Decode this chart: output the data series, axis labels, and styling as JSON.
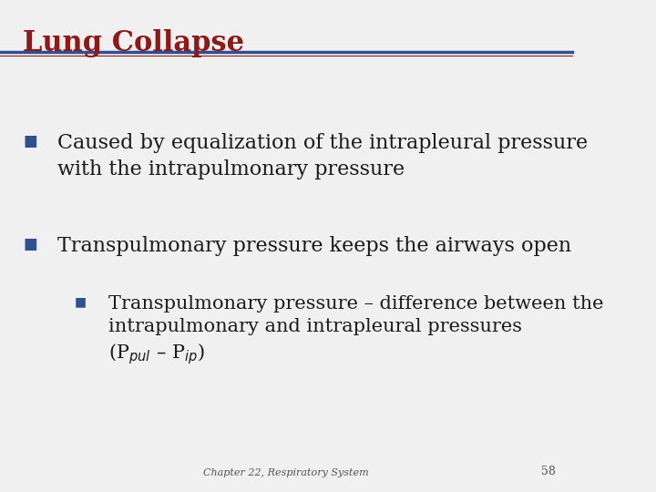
{
  "title": "Lung Collapse",
  "title_color": "#8B1A1A",
  "title_fontsize": 22,
  "title_fontstyle": "bold",
  "line_color": "#2F4F8F",
  "line2_color": "#8B1A1A",
  "background_color": "#F0F0F0",
  "bullet_color": "#2F4F8F",
  "text_color": "#1a1a1a",
  "footer_text": "Chapter 22, Respiratory System",
  "footer_page": "58",
  "bullets": [
    {
      "level": 1,
      "text": "Caused by equalization of the intrapleural pressure\nwith the intrapulmonary pressure",
      "fontsize": 16
    },
    {
      "level": 1,
      "text": "Transpulmonary pressure keeps the airways open",
      "fontsize": 16
    },
    {
      "level": 2,
      "text": "Transpulmonary pressure – difference between the\nintrapulmonary and intrapleural pressures\n(P$_{pul}$ – P$_{ip}$)",
      "fontsize": 15
    }
  ]
}
